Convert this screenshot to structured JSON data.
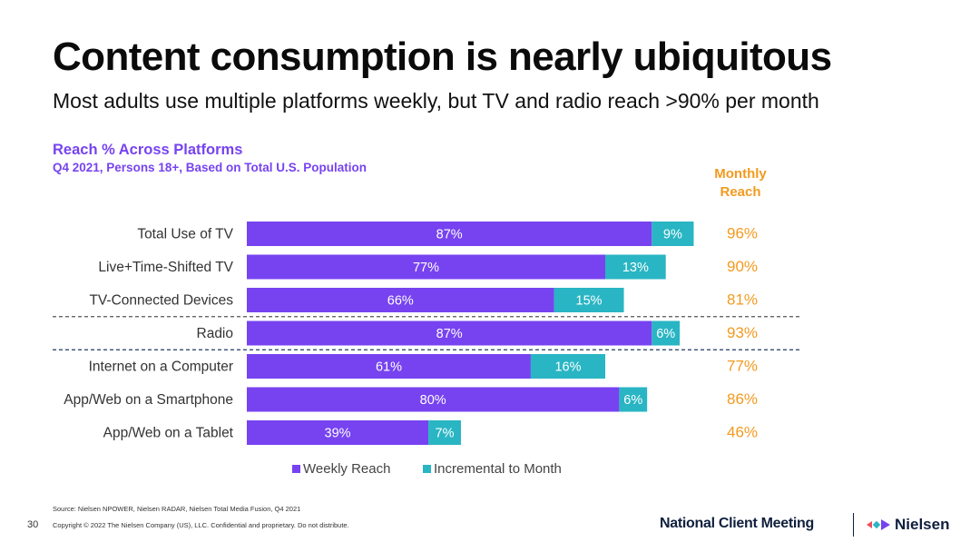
{
  "slide": {
    "title": "Content consumption is nearly ubiquitous",
    "subtitle": "Most adults use multiple platforms weekly, but TV and radio reach >90% per month",
    "source": "Source: Nielsen NPOWER, Nielsen RADAR, Nielsen Total Media Fusion, Q4 2021",
    "page_number": "30",
    "copyright": "Copyright © 2022 The Nielsen Company (US), LLC. Confidential and proprietary. Do not distribute.",
    "event": "National Client Meeting",
    "brand": "Nielsen"
  },
  "chart_data": {
    "type": "bar",
    "orientation": "horizontal",
    "stacked": true,
    "title": "Reach % Across Platforms",
    "subtitle": "Q4 2021, Persons 18+, Based on Total U.S. Population",
    "categories": [
      "Total Use of TV",
      "Live+Time-Shifted TV",
      "TV-Connected Devices",
      "Radio",
      "Internet on a Computer",
      "App/Web on a Smartphone",
      "App/Web on a Tablet"
    ],
    "series": [
      {
        "name": "Weekly Reach",
        "color": "#7743f0",
        "values": [
          87,
          77,
          66,
          87,
          61,
          80,
          39
        ],
        "labels": [
          "87%",
          "77%",
          "66%",
          "87%",
          "61%",
          "80%",
          "39%"
        ]
      },
      {
        "name": "Incremental to Month",
        "color": "#29b5c3",
        "values": [
          9,
          13,
          15,
          6,
          16,
          6,
          7
        ],
        "labels": [
          "9%",
          "13%",
          "15%",
          "6%",
          "16%",
          "6%",
          "7%"
        ]
      }
    ],
    "monthly_reach_header": "Monthly Reach",
    "monthly_reach_color": "#f39a1f",
    "monthly_reach": [
      "96%",
      "90%",
      "81%",
      "93%",
      "77%",
      "86%",
      "46%"
    ],
    "group_separators_after": [
      2,
      3
    ],
    "legend_position": "bottom-center",
    "grid": false
  }
}
